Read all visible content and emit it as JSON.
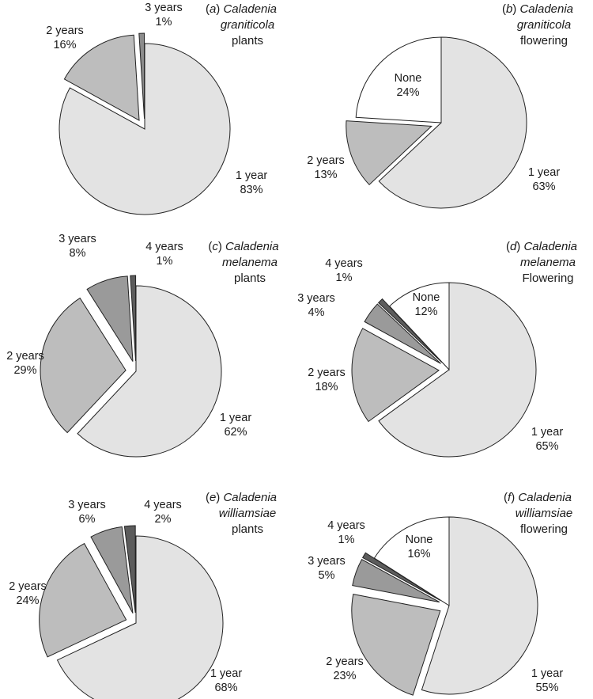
{
  "chart_data": [
    {
      "type": "pie",
      "panel": "a",
      "title": {
        "panel": "(a)",
        "genus": "Caladenia",
        "species": "graniticola",
        "kind": "plants"
      },
      "slices": [
        {
          "label": "1 year",
          "value": 83,
          "value_label": "83%",
          "color": "#e3e3e3",
          "exploded": false
        },
        {
          "label": "2 years",
          "value": 16,
          "value_label": "16%",
          "color": "#bdbdbd",
          "exploded": true
        },
        {
          "label": "3 years",
          "value": 1,
          "value_label": "1%",
          "color": "#8c8c8c",
          "exploded": true
        }
      ]
    },
    {
      "type": "pie",
      "panel": "b",
      "title": {
        "panel": "(b)",
        "genus": "Caladenia",
        "species": "graniticola",
        "kind": "flowering"
      },
      "slices": [
        {
          "label": "1 year",
          "value": 63,
          "value_label": "63%",
          "color": "#e3e3e3",
          "exploded": false
        },
        {
          "label": "2 years",
          "value": 13,
          "value_label": "13%",
          "color": "#bdbdbd",
          "exploded": true
        },
        {
          "label": "None",
          "value": 24,
          "value_label": "24%",
          "color": "#ffffff",
          "exploded": false
        }
      ]
    },
    {
      "type": "pie",
      "panel": "c",
      "title": {
        "panel": "(c)",
        "genus": "Caladenia",
        "species": "melanema",
        "kind": "plants"
      },
      "slices": [
        {
          "label": "1 year",
          "value": 62,
          "value_label": "62%",
          "color": "#e3e3e3",
          "exploded": false
        },
        {
          "label": "2 years",
          "value": 29,
          "value_label": "29%",
          "color": "#bdbdbd",
          "exploded": true
        },
        {
          "label": "3 years",
          "value": 8,
          "value_label": "8%",
          "color": "#9a9a9a",
          "exploded": true
        },
        {
          "label": "4 years",
          "value": 1,
          "value_label": "1%",
          "color": "#5c5c5c",
          "exploded": true
        }
      ]
    },
    {
      "type": "pie",
      "panel": "d",
      "title": {
        "panel": "(d)",
        "genus": "Caladenia",
        "species": "melanema",
        "kind": "Flowering"
      },
      "slices": [
        {
          "label": "1 year",
          "value": 65,
          "value_label": "65%",
          "color": "#e3e3e3",
          "exploded": false
        },
        {
          "label": "2 years",
          "value": 18,
          "value_label": "18%",
          "color": "#bdbdbd",
          "exploded": true
        },
        {
          "label": "3 years",
          "value": 4,
          "value_label": "4%",
          "color": "#9a9a9a",
          "exploded": true
        },
        {
          "label": "4 years",
          "value": 1,
          "value_label": "1%",
          "color": "#5c5c5c",
          "exploded": true
        },
        {
          "label": "None",
          "value": 12,
          "value_label": "12%",
          "color": "#ffffff",
          "exploded": false
        }
      ]
    },
    {
      "type": "pie",
      "panel": "e",
      "title": {
        "panel": "(e)",
        "genus": "Caladenia",
        "species": "williamsiae",
        "kind": "plants"
      },
      "slices": [
        {
          "label": "1 year",
          "value": 68,
          "value_label": "68%",
          "color": "#e3e3e3",
          "exploded": false
        },
        {
          "label": "2 years",
          "value": 24,
          "value_label": "24%",
          "color": "#bdbdbd",
          "exploded": true
        },
        {
          "label": "3 years",
          "value": 6,
          "value_label": "6%",
          "color": "#9a9a9a",
          "exploded": true
        },
        {
          "label": "4 years",
          "value": 2,
          "value_label": "2%",
          "color": "#5c5c5c",
          "exploded": true
        }
      ]
    },
    {
      "type": "pie",
      "panel": "f",
      "title": {
        "panel": "(f)",
        "genus": "Caladenia",
        "species": "williamsiae",
        "kind": "flowering"
      },
      "slices": [
        {
          "label": "1 year",
          "value": 55,
          "value_label": "55%",
          "color": "#e3e3e3",
          "exploded": false
        },
        {
          "label": "2 years",
          "value": 23,
          "value_label": "23%",
          "color": "#bdbdbd",
          "exploded": true
        },
        {
          "label": "3 years",
          "value": 5,
          "value_label": "5%",
          "color": "#9a9a9a",
          "exploded": true
        },
        {
          "label": "4 years",
          "value": 1,
          "value_label": "1%",
          "color": "#5c5c5c",
          "exploded": true
        },
        {
          "label": "None",
          "value": 16,
          "value_label": "16%",
          "color": "#ffffff",
          "exploded": false
        }
      ]
    }
  ]
}
